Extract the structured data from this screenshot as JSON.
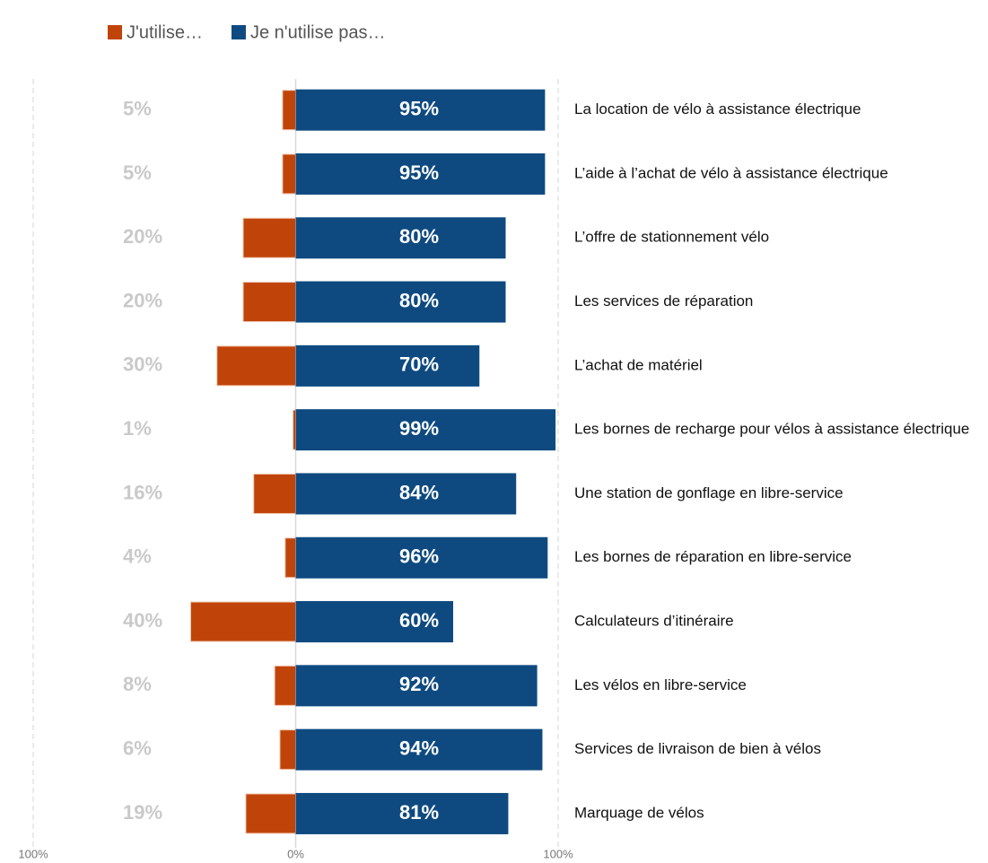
{
  "chart_data": {
    "type": "diverging_bar",
    "diverging": true,
    "categories": [
      "La location de vélo à assistance électrique",
      "L’aide à l’achat de vélo à assistance électrique",
      "L’offre de stationnement vélo",
      "Les services de réparation",
      "L’achat de matériel",
      "Les bornes de recharge pour vélos à assistance électrique",
      "Une station de gonflage en libre-service",
      "Les bornes de réparation en libre-service",
      "Calculateurs d’itinéraire",
      "Les vélos en libre-service",
      "Services de livraison de bien à vélos",
      "Marquage de vélos"
    ],
    "series": [
      {
        "name": "J'utilise…",
        "color": "#c0440a",
        "values": [
          5,
          5,
          20,
          20,
          30,
          1,
          16,
          4,
          40,
          8,
          6,
          19
        ],
        "value_labels": [
          "5%",
          "5%",
          "20%",
          "20%",
          "30%",
          "1%",
          "16%",
          "4%",
          "40%",
          "8%",
          "6%",
          "19%"
        ]
      },
      {
        "name": "Je n'utilise pas…",
        "color": "#0e4a80",
        "values": [
          95,
          95,
          80,
          80,
          70,
          99,
          84,
          96,
          60,
          92,
          94,
          81
        ],
        "value_labels": [
          "95%",
          "95%",
          "80%",
          "80%",
          "70%",
          "99%",
          "84%",
          "96%",
          "60%",
          "92%",
          "94%",
          "81%"
        ]
      }
    ],
    "xlim": [
      -100,
      100
    ],
    "xticks": [
      {
        "value": -100,
        "label": "100%"
      },
      {
        "value": 0,
        "label": "0%"
      },
      {
        "value": 100,
        "label": "100%"
      }
    ],
    "grid": true,
    "legend": "top-left"
  }
}
